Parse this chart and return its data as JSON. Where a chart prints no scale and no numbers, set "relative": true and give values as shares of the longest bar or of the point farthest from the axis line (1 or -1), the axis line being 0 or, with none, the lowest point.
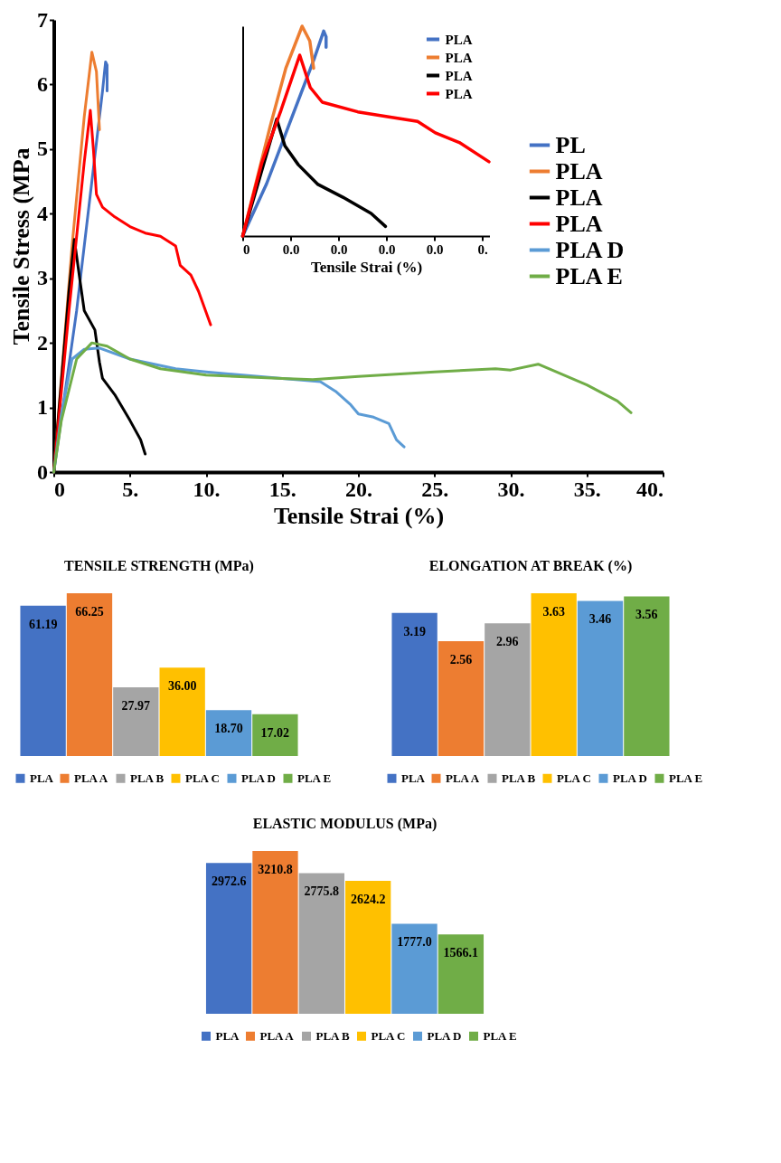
{
  "chart_data": [
    {
      "type": "line",
      "xlabel": "Tensile Strai (%)",
      "ylabel": "Tensile Stress (MPa",
      "xlim": [
        0,
        40
      ],
      "ylim": [
        0,
        7
      ],
      "xticks": [
        0,
        {
          "value": 5,
          "label": "5."
        },
        {
          "value": 10,
          "label": "10."
        },
        {
          "value": 15,
          "label": "15."
        },
        {
          "value": 20,
          "label": "20."
        },
        {
          "value": 25,
          "label": "25."
        },
        {
          "value": 30,
          "label": "30."
        },
        {
          "value": 35,
          "label": "35."
        },
        {
          "value": 40,
          "label": "40."
        }
      ],
      "yticks": [
        0,
        1,
        2,
        3,
        4,
        5,
        6,
        7
      ],
      "legend": "top right",
      "grid": false,
      "series": [
        {
          "name": "PL",
          "color": "#4472c4",
          "x": [
            0,
            1.5,
            2.5,
            3.2,
            3.4,
            3.5,
            3.5
          ],
          "values": [
            0,
            2.5,
            4.5,
            5.9,
            6.35,
            6.3,
            5.9
          ]
        },
        {
          "name": "PLA",
          "color": "#ed7d31",
          "x": [
            0,
            1.2,
            2.0,
            2.5,
            2.8,
            3.0
          ],
          "values": [
            0,
            3.5,
            5.5,
            6.5,
            6.2,
            5.3
          ]
        },
        {
          "name": "PLA",
          "color": "#000000",
          "x": [
            0,
            1.0,
            1.35,
            1.7,
            2.0,
            2.7,
            3.0,
            3.2,
            4.0,
            5.0,
            5.7,
            6.0
          ],
          "values": [
            0,
            2.8,
            3.6,
            3.0,
            2.5,
            2.2,
            1.7,
            1.45,
            1.2,
            0.8,
            0.5,
            0.28
          ]
        },
        {
          "name": "PLA",
          "color": "#ff0000",
          "x": [
            0,
            1.0,
            2.0,
            2.4,
            2.6,
            2.8,
            3.2,
            4,
            5,
            6,
            7,
            8,
            8.3,
            9,
            9.5,
            10.3
          ],
          "values": [
            0,
            2.5,
            4.8,
            5.6,
            5.0,
            4.3,
            4.1,
            3.95,
            3.8,
            3.7,
            3.65,
            3.5,
            3.2,
            3.05,
            2.8,
            2.28
          ]
        },
        {
          "name": "PLA D",
          "color": "#5b9bd5",
          "x": [
            0,
            0.5,
            1.2,
            2,
            3,
            5,
            8,
            10,
            15,
            17.5,
            18.5,
            19.5,
            20,
            21,
            22,
            22.5,
            23
          ],
          "values": [
            0,
            0.9,
            1.75,
            1.9,
            1.92,
            1.75,
            1.6,
            1.55,
            1.45,
            1.4,
            1.25,
            1.04,
            0.9,
            0.85,
            0.75,
            0.5,
            0.39
          ]
        },
        {
          "name": "PLA E",
          "color": "#70ad47",
          "x": [
            0,
            0.5,
            1.5,
            2.5,
            3.5,
            5,
            7,
            10,
            15,
            17,
            20,
            25,
            29,
            30,
            31.8,
            32.5,
            35,
            37,
            37.9
          ],
          "values": [
            0,
            0.8,
            1.75,
            2.0,
            1.95,
            1.75,
            1.6,
            1.5,
            1.45,
            1.43,
            1.48,
            1.55,
            1.6,
            1.58,
            1.67,
            1.6,
            1.35,
            1.1,
            0.92
          ]
        }
      ]
    },
    {
      "type": "line",
      "relative": true,
      "xlabel": "Tensile Strai (%)",
      "xlim": [
        0,
        0.0515
      ],
      "xticks": [
        0,
        {
          "value": 0.01,
          "label": "0.0"
        },
        {
          "value": 0.02,
          "label": "0.0"
        },
        {
          "value": 0.03,
          "label": "0.0"
        },
        {
          "value": 0.04,
          "label": "0.0"
        },
        {
          "value": 0.05,
          "label": "0."
        }
      ],
      "legend": "top right",
      "tick_labels": "x",
      "series": [
        {
          "name": "PLA",
          "color": "#4472c4",
          "x": [
            0,
            0.005,
            0.01,
            0.015,
            0.0169,
            0.0174,
            0.0174
          ],
          "values": [
            0,
            0.25,
            0.55,
            0.85,
            0.977,
            0.95,
            0.9
          ]
        },
        {
          "name": "PLA",
          "color": "#ed7d31",
          "x": [
            0,
            0.0057,
            0.009,
            0.0124,
            0.014,
            0.0148
          ],
          "values": [
            0,
            0.52,
            0.8,
            1.0,
            0.93,
            0.8
          ]
        },
        {
          "name": "PLA",
          "color": "#000000",
          "x": [
            0,
            0.0071,
            0.0088,
            0.0116,
            0.0157,
            0.0209,
            0.0268,
            0.0298
          ],
          "values": [
            0,
            0.557,
            0.43,
            0.34,
            0.246,
            0.185,
            0.108,
            0.046
          ]
        },
        {
          "name": "PLA",
          "color": "#ff0000",
          "x": [
            0,
            0.004,
            0.008,
            0.0119,
            0.0141,
            0.0166,
            0.024,
            0.0302,
            0.0365,
            0.0402,
            0.0452,
            0.0514
          ],
          "values": [
            0,
            0.35,
            0.6,
            0.862,
            0.708,
            0.638,
            0.592,
            0.569,
            0.546,
            0.492,
            0.446,
            0.354
          ]
        }
      ]
    },
    {
      "type": "bar",
      "title": "TENSILE STRENGTH (MPa)",
      "categories": [
        null
      ],
      "legend": "bottom",
      "series": [
        {
          "name": "PLA",
          "color": "#4472c4",
          "values": [
            61.19
          ],
          "value_labels": [
            "61.19"
          ]
        },
        {
          "name": "PLA A",
          "color": "#ed7d31",
          "values": [
            66.25
          ],
          "value_labels": [
            "66.25"
          ]
        },
        {
          "name": "PLA B",
          "color": "#a5a5a5",
          "values": [
            27.97
          ],
          "value_labels": [
            "27.97"
          ]
        },
        {
          "name": "PLA C",
          "color": "#ffc000",
          "values": [
            36.0
          ],
          "value_labels": [
            "36.00"
          ]
        },
        {
          "name": "PLA D",
          "color": "#5b9bd5",
          "values": [
            18.7
          ],
          "value_labels": [
            "18.70"
          ]
        },
        {
          "name": "PLA E",
          "color": "#70ad47",
          "values": [
            17.02
          ],
          "value_labels": [
            "17.02"
          ]
        }
      ]
    },
    {
      "type": "bar",
      "title": "ELONGATION AT BREAK (%)",
      "categories": [
        null
      ],
      "legend": "bottom",
      "series": [
        {
          "name": "PLA",
          "color": "#4472c4",
          "values": [
            3.19
          ],
          "value_labels": [
            "3.19"
          ]
        },
        {
          "name": "PLA A",
          "color": "#ed7d31",
          "values": [
            2.56
          ],
          "value_labels": [
            "2.56"
          ]
        },
        {
          "name": "PLA B",
          "color": "#a5a5a5",
          "values": [
            2.96
          ],
          "value_labels": [
            "2.96"
          ]
        },
        {
          "name": "PLA C",
          "color": "#ffc000",
          "values": [
            3.63
          ],
          "value_labels": [
            "3.63"
          ]
        },
        {
          "name": "PLA D",
          "color": "#5b9bd5",
          "values": [
            3.46
          ],
          "value_labels": [
            "3.46"
          ]
        },
        {
          "name": "PLA E",
          "color": "#70ad47",
          "values": [
            3.56
          ],
          "value_labels": [
            "3.56"
          ]
        }
      ]
    },
    {
      "type": "bar",
      "title": "ELASTIC MODULUS (MPa)",
      "categories": [
        null
      ],
      "legend": "bottom",
      "series": [
        {
          "name": "PLA",
          "color": "#4472c4",
          "values": [
            2972.6
          ],
          "value_labels": [
            "2972.6"
          ]
        },
        {
          "name": "PLA A",
          "color": "#ed7d31",
          "values": [
            3210.8
          ],
          "value_labels": [
            "3210.8"
          ]
        },
        {
          "name": "PLA B",
          "color": "#a5a5a5",
          "values": [
            2775.8
          ],
          "value_labels": [
            "2775.8"
          ]
        },
        {
          "name": "PLA C",
          "color": "#ffc000",
          "values": [
            2624.2
          ],
          "value_labels": [
            "2624.2"
          ]
        },
        {
          "name": "PLA D",
          "color": "#5b9bd5",
          "values": [
            1777.0
          ],
          "value_labels": [
            "1777.0"
          ]
        },
        {
          "name": "PLA E",
          "color": "#70ad47",
          "values": [
            1566.1
          ],
          "value_labels": [
            "1566.1"
          ]
        }
      ]
    }
  ]
}
